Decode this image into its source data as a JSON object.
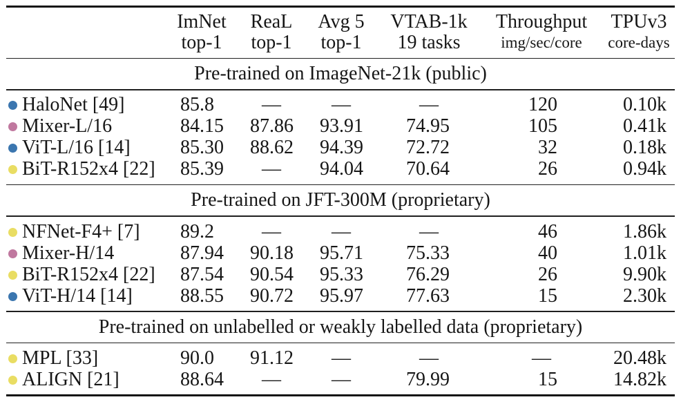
{
  "table": {
    "columns": [
      {
        "id": "imnet",
        "top": "ImNet",
        "bottom": "top-1",
        "small_bottom": false
      },
      {
        "id": "real",
        "top": "ReaL",
        "bottom": "top-1",
        "small_bottom": false
      },
      {
        "id": "avg5",
        "top": "Avg 5",
        "bottom": "top-1",
        "small_bottom": false
      },
      {
        "id": "vtab",
        "top": "VTAB-1k",
        "bottom": "19 tasks",
        "small_bottom": false
      },
      {
        "id": "thr",
        "top": "Throughput",
        "bottom": "img/sec/core",
        "small_bottom": true
      },
      {
        "id": "tpu",
        "top": "TPUv3",
        "bottom": "core-days",
        "small_bottom": true
      }
    ],
    "dash": "—",
    "bullet_colors": {
      "blue": "#3b76af",
      "pink": "#c0789f",
      "yellow": "#e9dd63"
    },
    "sections": [
      {
        "title": "Pre-trained on ImageNet-21k (public)",
        "rows": [
          {
            "bullet": "blue",
            "model": "HaloNet [49]",
            "values": [
              "85.8",
              "—",
              "—",
              "—",
              "120",
              "0.10k"
            ]
          },
          {
            "bullet": "pink",
            "model": "Mixer-L/16",
            "values": [
              "84.15",
              "87.86",
              "93.91",
              "74.95",
              "105",
              "0.41k"
            ]
          },
          {
            "bullet": "blue",
            "model": "ViT-L/16 [14]",
            "values": [
              "85.30",
              "88.62",
              "94.39",
              "72.72",
              "32",
              "0.18k"
            ]
          },
          {
            "bullet": "yellow",
            "model": "BiT-R152x4 [22]",
            "values": [
              "85.39",
              "—",
              "94.04",
              "70.64",
              "26",
              "0.94k"
            ]
          }
        ]
      },
      {
        "title": "Pre-trained on JFT-300M (proprietary)",
        "rows": [
          {
            "bullet": "yellow",
            "model": "NFNet-F4+ [7]",
            "values": [
              "89.2",
              "—",
              "—",
              "—",
              "46",
              "1.86k"
            ]
          },
          {
            "bullet": "pink",
            "model": "Mixer-H/14",
            "values": [
              "87.94",
              "90.18",
              "95.71",
              "75.33",
              "40",
              "1.01k"
            ]
          },
          {
            "bullet": "yellow",
            "model": "BiT-R152x4 [22]",
            "values": [
              "87.54",
              "90.54",
              "95.33",
              "76.29",
              "26",
              "9.90k"
            ]
          },
          {
            "bullet": "blue",
            "model": "ViT-H/14 [14]",
            "values": [
              "88.55",
              "90.72",
              "95.97",
              "77.63",
              "15",
              "2.30k"
            ]
          }
        ]
      },
      {
        "title": "Pre-trained on unlabelled or weakly labelled data (proprietary)",
        "rows": [
          {
            "bullet": "yellow",
            "model": "MPL [33]",
            "values": [
              "90.0",
              "91.12",
              "—",
              "—",
              "—",
              "20.48k"
            ]
          },
          {
            "bullet": "yellow",
            "model": "ALIGN [21]",
            "values": [
              "88.64",
              "—",
              "—",
              "79.99",
              "15",
              "14.82k"
            ]
          }
        ]
      }
    ]
  }
}
